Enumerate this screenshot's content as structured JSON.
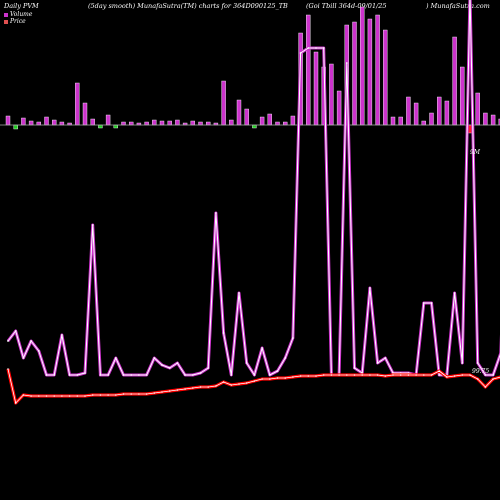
{
  "header": {
    "left": "Daily PVM",
    "middle": "(5day smooth) MunafaSutra(TM) charts for 364D090125_TB",
    "right": "(Goi   Tbill 364d-09/01/25",
    "site": ") MunafaSutra.com"
  },
  "legend": [
    {
      "label": "Volume",
      "color": "#cc33cc"
    },
    {
      "label": "Price",
      "color": "#e05050"
    }
  ],
  "annotations": {
    "price_max_label": "9M",
    "price_last_label": "99.75"
  },
  "colors": {
    "volume_up": "#cc33cc",
    "volume_down": "#22cc22",
    "volume_red": "#ff2222",
    "volume_outline": "#ffffff",
    "line_glow": "#cc33cc",
    "line_core": "#ffffff",
    "price_glow": "#ff0000",
    "price_core": "#ffffff",
    "baseline": "#aaaaaa"
  },
  "chart_data": {
    "type": "bar",
    "title": "",
    "x": [
      1,
      2,
      3,
      4,
      5,
      6,
      7,
      8,
      9,
      10,
      11,
      12,
      13,
      14,
      15,
      16,
      17,
      18,
      19,
      20,
      21,
      22,
      23,
      24,
      25,
      26,
      27,
      28,
      29,
      30,
      31,
      32,
      33,
      34,
      35,
      36,
      37,
      38,
      39,
      40,
      41,
      42,
      43,
      44,
      45,
      46,
      47,
      48,
      49,
      50,
      51,
      52,
      53,
      54,
      55,
      56,
      57,
      58,
      59,
      60,
      61,
      62,
      63,
      64,
      65,
      66
    ],
    "volume_bars": [
      {
        "x": 1,
        "v": 9,
        "dir": "up"
      },
      {
        "x": 2,
        "v": -4,
        "dir": "down"
      },
      {
        "x": 3,
        "v": 7,
        "dir": "up"
      },
      {
        "x": 4,
        "v": 4,
        "dir": "up"
      },
      {
        "x": 5,
        "v": 3,
        "dir": "up"
      },
      {
        "x": 6,
        "v": 8,
        "dir": "up"
      },
      {
        "x": 7,
        "v": 5,
        "dir": "up"
      },
      {
        "x": 8,
        "v": 3,
        "dir": "up"
      },
      {
        "x": 9,
        "v": 2,
        "dir": "up"
      },
      {
        "x": 10,
        "v": 42,
        "dir": "up"
      },
      {
        "x": 11,
        "v": 22,
        "dir": "up"
      },
      {
        "x": 12,
        "v": 6,
        "dir": "up"
      },
      {
        "x": 13,
        "v": -3,
        "dir": "down"
      },
      {
        "x": 14,
        "v": 10,
        "dir": "up"
      },
      {
        "x": 15,
        "v": -3,
        "dir": "down"
      },
      {
        "x": 16,
        "v": 3,
        "dir": "up"
      },
      {
        "x": 17,
        "v": 3,
        "dir": "up"
      },
      {
        "x": 18,
        "v": 2,
        "dir": "up"
      },
      {
        "x": 19,
        "v": 3,
        "dir": "up"
      },
      {
        "x": 20,
        "v": 5,
        "dir": "up"
      },
      {
        "x": 21,
        "v": 4,
        "dir": "up"
      },
      {
        "x": 22,
        "v": 4,
        "dir": "up"
      },
      {
        "x": 23,
        "v": 5,
        "dir": "up"
      },
      {
        "x": 24,
        "v": 2,
        "dir": "up"
      },
      {
        "x": 25,
        "v": 4,
        "dir": "up"
      },
      {
        "x": 26,
        "v": 3,
        "dir": "up"
      },
      {
        "x": 27,
        "v": 3,
        "dir": "up"
      },
      {
        "x": 28,
        "v": 2,
        "dir": "up"
      },
      {
        "x": 29,
        "v": 44,
        "dir": "up"
      },
      {
        "x": 30,
        "v": 5,
        "dir": "up"
      },
      {
        "x": 31,
        "v": 25,
        "dir": "up"
      },
      {
        "x": 32,
        "v": 16,
        "dir": "up"
      },
      {
        "x": 33,
        "v": -3,
        "dir": "down"
      },
      {
        "x": 34,
        "v": 8,
        "dir": "up"
      },
      {
        "x": 35,
        "v": 11,
        "dir": "up"
      },
      {
        "x": 36,
        "v": 3,
        "dir": "up"
      },
      {
        "x": 37,
        "v": 3,
        "dir": "up"
      },
      {
        "x": 38,
        "v": 9,
        "dir": "up"
      },
      {
        "x": 39,
        "v": 92,
        "dir": "up"
      },
      {
        "x": 40,
        "v": 110,
        "dir": "up"
      },
      {
        "x": 41,
        "v": 73,
        "dir": "up"
      },
      {
        "x": 42,
        "v": 58,
        "dir": "up"
      },
      {
        "x": 43,
        "v": 61,
        "dir": "up"
      },
      {
        "x": 44,
        "v": 34,
        "dir": "up"
      },
      {
        "x": 45,
        "v": 100,
        "dir": "up"
      },
      {
        "x": 46,
        "v": 103,
        "dir": "up"
      },
      {
        "x": 47,
        "v": 118,
        "dir": "up"
      },
      {
        "x": 48,
        "v": 106,
        "dir": "up"
      },
      {
        "x": 49,
        "v": 110,
        "dir": "up"
      },
      {
        "x": 50,
        "v": 95,
        "dir": "up"
      },
      {
        "x": 51,
        "v": 8,
        "dir": "up"
      },
      {
        "x": 52,
        "v": 8,
        "dir": "up"
      },
      {
        "x": 53,
        "v": 28,
        "dir": "up"
      },
      {
        "x": 54,
        "v": 22,
        "dir": "up"
      },
      {
        "x": 55,
        "v": 4,
        "dir": "up"
      },
      {
        "x": 56,
        "v": 12,
        "dir": "up"
      },
      {
        "x": 57,
        "v": 28,
        "dir": "up"
      },
      {
        "x": 58,
        "v": 24,
        "dir": "up"
      },
      {
        "x": 59,
        "v": 88,
        "dir": "up"
      },
      {
        "x": 60,
        "v": 58,
        "dir": "up"
      },
      {
        "x": 61,
        "v": -8,
        "dir": "red"
      },
      {
        "x": 62,
        "v": 32,
        "dir": "up"
      },
      {
        "x": 63,
        "v": 12,
        "dir": "up"
      },
      {
        "x": 64,
        "v": 10,
        "dir": "up"
      },
      {
        "x": 65,
        "v": 6,
        "dir": "up"
      },
      {
        "x": 66,
        "v": 124,
        "dir": "up"
      }
    ],
    "volume_line": [
      [
        1,
        62
      ],
      [
        2,
        72
      ],
      [
        3,
        45
      ],
      [
        4,
        62
      ],
      [
        5,
        52
      ],
      [
        6,
        28
      ],
      [
        7,
        28
      ],
      [
        8,
        68
      ],
      [
        9,
        28
      ],
      [
        10,
        28
      ],
      [
        11,
        30
      ],
      [
        12,
        178
      ],
      [
        13,
        28
      ],
      [
        14,
        28
      ],
      [
        15,
        45
      ],
      [
        16,
        28
      ],
      [
        17,
        28
      ],
      [
        18,
        28
      ],
      [
        19,
        28
      ],
      [
        20,
        45
      ],
      [
        21,
        38
      ],
      [
        22,
        35
      ],
      [
        23,
        40
      ],
      [
        24,
        28
      ],
      [
        25,
        28
      ],
      [
        26,
        30
      ],
      [
        27,
        35
      ],
      [
        28,
        190
      ],
      [
        29,
        70
      ],
      [
        30,
        28
      ],
      [
        31,
        110
      ],
      [
        32,
        40
      ],
      [
        33,
        28
      ],
      [
        34,
        55
      ],
      [
        35,
        28
      ],
      [
        36,
        32
      ],
      [
        37,
        45
      ],
      [
        38,
        65
      ],
      [
        39,
        350
      ],
      [
        40,
        355
      ],
      [
        41,
        355
      ],
      [
        42,
        355
      ],
      [
        43,
        28
      ],
      [
        44,
        28
      ],
      [
        45,
        340
      ],
      [
        46,
        35
      ],
      [
        47,
        30
      ],
      [
        48,
        115
      ],
      [
        49,
        40
      ],
      [
        50,
        45
      ],
      [
        51,
        30
      ],
      [
        52,
        30
      ],
      [
        53,
        30
      ],
      [
        54,
        28
      ],
      [
        55,
        100
      ],
      [
        56,
        100
      ],
      [
        57,
        28
      ],
      [
        58,
        28
      ],
      [
        59,
        110
      ],
      [
        60,
        40
      ],
      [
        61,
        410
      ],
      [
        62,
        40
      ],
      [
        63,
        28
      ],
      [
        64,
        28
      ],
      [
        65,
        50
      ],
      [
        66,
        258
      ]
    ],
    "price": [
      [
        1,
        6
      ],
      [
        2,
        -28
      ],
      [
        3,
        -20
      ],
      [
        4,
        -21
      ],
      [
        5,
        -21
      ],
      [
        6,
        -21
      ],
      [
        7,
        -21
      ],
      [
        8,
        -21
      ],
      [
        9,
        -21
      ],
      [
        10,
        -21
      ],
      [
        11,
        -21
      ],
      [
        12,
        -20
      ],
      [
        13,
        -20
      ],
      [
        14,
        -20
      ],
      [
        15,
        -20
      ],
      [
        16,
        -19
      ],
      [
        17,
        -19
      ],
      [
        18,
        -19
      ],
      [
        19,
        -19
      ],
      [
        20,
        -18
      ],
      [
        21,
        -17
      ],
      [
        22,
        -16
      ],
      [
        23,
        -15
      ],
      [
        24,
        -14
      ],
      [
        25,
        -13
      ],
      [
        26,
        -12
      ],
      [
        27,
        -12
      ],
      [
        28,
        -11
      ],
      [
        29,
        -7
      ],
      [
        30,
        -10
      ],
      [
        31,
        -9
      ],
      [
        32,
        -8
      ],
      [
        33,
        -6
      ],
      [
        34,
        -4
      ],
      [
        35,
        -4
      ],
      [
        36,
        -3
      ],
      [
        37,
        -3
      ],
      [
        38,
        -2
      ],
      [
        39,
        -1
      ],
      [
        40,
        -1
      ],
      [
        41,
        -1
      ],
      [
        42,
        0
      ],
      [
        43,
        0
      ],
      [
        44,
        0
      ],
      [
        45,
        0
      ],
      [
        46,
        0
      ],
      [
        47,
        0
      ],
      [
        48,
        0
      ],
      [
        49,
        0
      ],
      [
        50,
        -1
      ],
      [
        51,
        0
      ],
      [
        52,
        0
      ],
      [
        53,
        0
      ],
      [
        54,
        0
      ],
      [
        55,
        0
      ],
      [
        56,
        0
      ],
      [
        57,
        4
      ],
      [
        58,
        -2
      ],
      [
        59,
        -1
      ],
      [
        60,
        0
      ],
      [
        61,
        0
      ],
      [
        62,
        -4
      ],
      [
        63,
        -12
      ],
      [
        64,
        -4
      ],
      [
        65,
        -2
      ],
      [
        66,
        2
      ]
    ]
  }
}
